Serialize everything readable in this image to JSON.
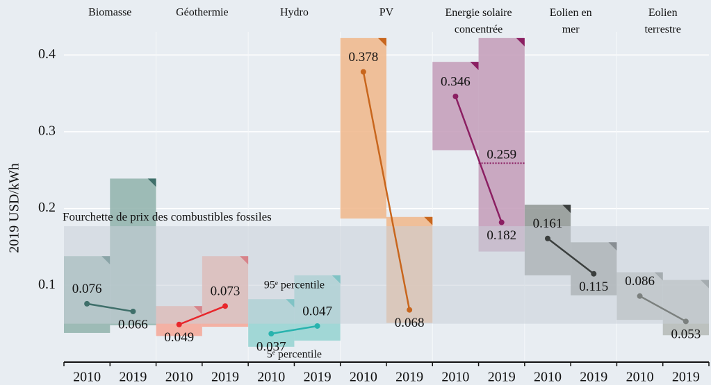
{
  "chart_data": {
    "type": "range",
    "y_label": "2019 USD/kWh",
    "ylim": [
      0,
      0.43
    ],
    "yticks": [
      0.1,
      0.2,
      0.3,
      0.4
    ],
    "grid": true,
    "years": [
      "2010",
      "2019"
    ],
    "fossil_range": {
      "label": "Fourchette de prix des combustibles fossiles",
      "low": 0.05,
      "high": 0.177,
      "color": "#c9d0d8"
    },
    "annotations": [
      {
        "text": "95ᵉ percentile",
        "group": 2
      },
      {
        "text": "5ᵉ percentile",
        "group": 2
      }
    ],
    "reference": {
      "group": 4,
      "value": 0.259,
      "color": "#8b1f62"
    },
    "series": [
      {
        "name": "Biomasse",
        "color": "#3f6f6a",
        "box_color": "#8fb1ab",
        "values": [
          0.076,
          0.066
        ],
        "low": [
          0.038,
          0.048
        ],
        "high": [
          0.138,
          0.239
        ]
      },
      {
        "name": "Géothermie",
        "color": "#e8262b",
        "box_color": "#f4a696",
        "values": [
          0.049,
          0.073
        ],
        "low": [
          0.034,
          0.046
        ],
        "high": [
          0.073,
          0.138
        ]
      },
      {
        "name": "Hydro",
        "color": "#29b3ae",
        "box_color": "#94d2d1",
        "values": [
          0.037,
          0.047
        ],
        "low": [
          0.02,
          0.028
        ],
        "high": [
          0.082,
          0.113
        ]
      },
      {
        "name": "PV",
        "color": "#c8661d",
        "box_color": "#f0b68a",
        "values": [
          0.378,
          0.068
        ],
        "low": [
          0.187,
          0.051
        ],
        "high": [
          0.422,
          0.189
        ]
      },
      {
        "name": "Energie solaire concentrée",
        "color": "#8b1f62",
        "box_color": "#c39bb9",
        "values": [
          0.346,
          0.182
        ],
        "low": [
          0.276,
          0.144
        ],
        "high": [
          0.391,
          0.422
        ]
      },
      {
        "name": "Eolien en mer",
        "color": "#3b3f3e",
        "box_color": "#8f9593",
        "values": [
          0.161,
          0.115
        ],
        "low": [
          0.113,
          0.087
        ],
        "high": [
          0.205,
          0.156
        ]
      },
      {
        "name": "Eolien terrestre",
        "color": "#7b807e",
        "box_color": "#b4b9b6",
        "values": [
          0.086,
          0.053
        ],
        "low": [
          0.055,
          0.035
        ],
        "high": [
          0.117,
          0.107
        ]
      }
    ]
  }
}
